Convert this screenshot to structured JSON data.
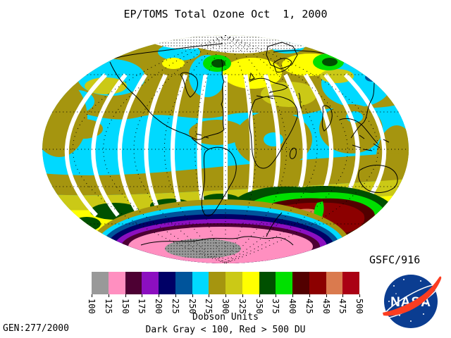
{
  "title": "EP/TOMS Total Ozone Oct  1, 2000",
  "labels": {
    "gsfc": "GSFC/916",
    "gen": "GEN:277/2000"
  },
  "colorbar": {
    "units_label": "Dobson Units",
    "range_note": "Dark Gray < 100, Red > 500 DU",
    "tick_labels": [
      "100",
      "125",
      "150",
      "175",
      "200",
      "225",
      "250",
      "275",
      "300",
      "325",
      "350",
      "375",
      "400",
      "425",
      "450",
      "475",
      "500"
    ],
    "segment_colors": [
      "#999999",
      "#FF8FC0",
      "#4D0033",
      "#8C0FC0",
      "#000066",
      "#00549B",
      "#00D9FF",
      "#A5950F",
      "#CBC916",
      "#FFFF00",
      "#005000",
      "#00E000",
      "#520000",
      "#8C0000",
      "#DA7A4E",
      "#AA0014"
    ]
  },
  "map": {
    "projection": "Mollweide",
    "palette": {
      "gray": "#999999",
      "pink": "#FF8FC0",
      "plum": "#4D0033",
      "purple": "#8C0FC0",
      "navy": "#000066",
      "blue": "#00549B",
      "cyan": "#00D9FF",
      "olive": "#A5950F",
      "yellowgreen": "#CBC916",
      "yellow": "#FFFF00",
      "darkgreen": "#005000",
      "green": "#00E000",
      "maroon": "#520000",
      "darkred": "#8C0000",
      "salmon": "#DA7A4E",
      "red": "#AA0014",
      "nodata": "#FFFFFF"
    }
  },
  "nasa": {
    "label": "NASA",
    "blue": "#0B3D91",
    "red": "#FC3D21"
  }
}
